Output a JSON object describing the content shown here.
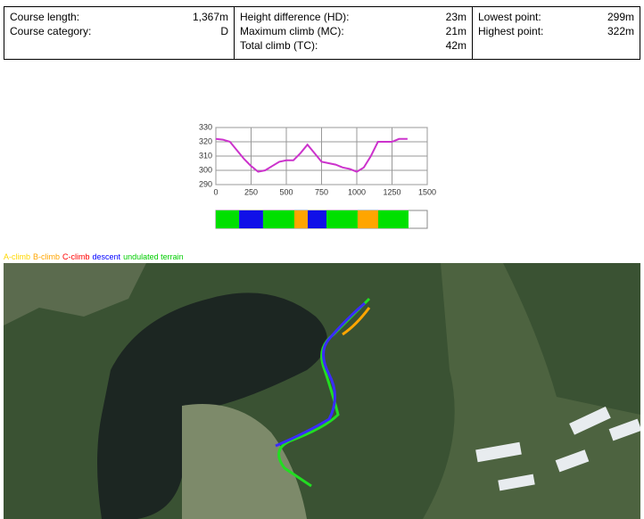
{
  "stats": {
    "col1": [
      {
        "label": "Course length:",
        "value": "1,367m"
      },
      {
        "label": "Course category:",
        "value": "D"
      }
    ],
    "col2": [
      {
        "label": "Height difference (HD):",
        "value": "23m"
      },
      {
        "label": "Maximum climb (MC):",
        "value": "21m"
      },
      {
        "label": "Total climb (TC):",
        "value": "42m"
      }
    ],
    "col3": [
      {
        "label": "Lowest point:",
        "value": "299m"
      },
      {
        "label": "Highest point:",
        "value": "322m"
      }
    ]
  },
  "chart_data": {
    "type": "line",
    "x": [
      0,
      50,
      100,
      150,
      200,
      250,
      300,
      350,
      400,
      450,
      500,
      550,
      600,
      650,
      700,
      750,
      800,
      850,
      900,
      950,
      1000,
      1050,
      1100,
      1150,
      1200,
      1250,
      1300,
      1360
    ],
    "values": [
      322,
      321.5,
      320,
      314,
      308,
      303,
      299,
      300,
      303,
      306,
      307,
      307,
      312,
      318,
      312,
      306,
      305,
      304,
      302,
      301,
      299,
      302,
      310,
      320,
      320,
      320,
      322,
      322
    ],
    "color": "#cc33cc",
    "xlim": [
      0,
      1500
    ],
    "xticks": [
      0,
      250,
      500,
      750,
      1000,
      1250,
      1500
    ],
    "ylim": [
      290,
      330
    ],
    "yticks": [
      290,
      300,
      310,
      320,
      330
    ],
    "grid": true,
    "segments": [
      {
        "start": 0,
        "end": 165,
        "color": "#00e000"
      },
      {
        "start": 165,
        "end": 335,
        "color": "#1010e8"
      },
      {
        "start": 335,
        "end": 557,
        "color": "#00e000"
      },
      {
        "start": 557,
        "end": 652,
        "color": "#ffa500"
      },
      {
        "start": 652,
        "end": 785,
        "color": "#1010e8"
      },
      {
        "start": 785,
        "end": 1006,
        "color": "#00e000"
      },
      {
        "start": 1006,
        "end": 1152,
        "color": "#ffa500"
      },
      {
        "start": 1152,
        "end": 1367,
        "color": "#00e000"
      }
    ],
    "legend": [
      {
        "name": "A-climb",
        "color": "#ffd700"
      },
      {
        "name": "B-climb",
        "color": "#ffa500"
      },
      {
        "name": "C-climb",
        "color": "#ff0000"
      },
      {
        "name": "descent",
        "color": "#0000ff"
      },
      {
        "name": "undulated terrain",
        "color": "#00cc00"
      }
    ]
  }
}
